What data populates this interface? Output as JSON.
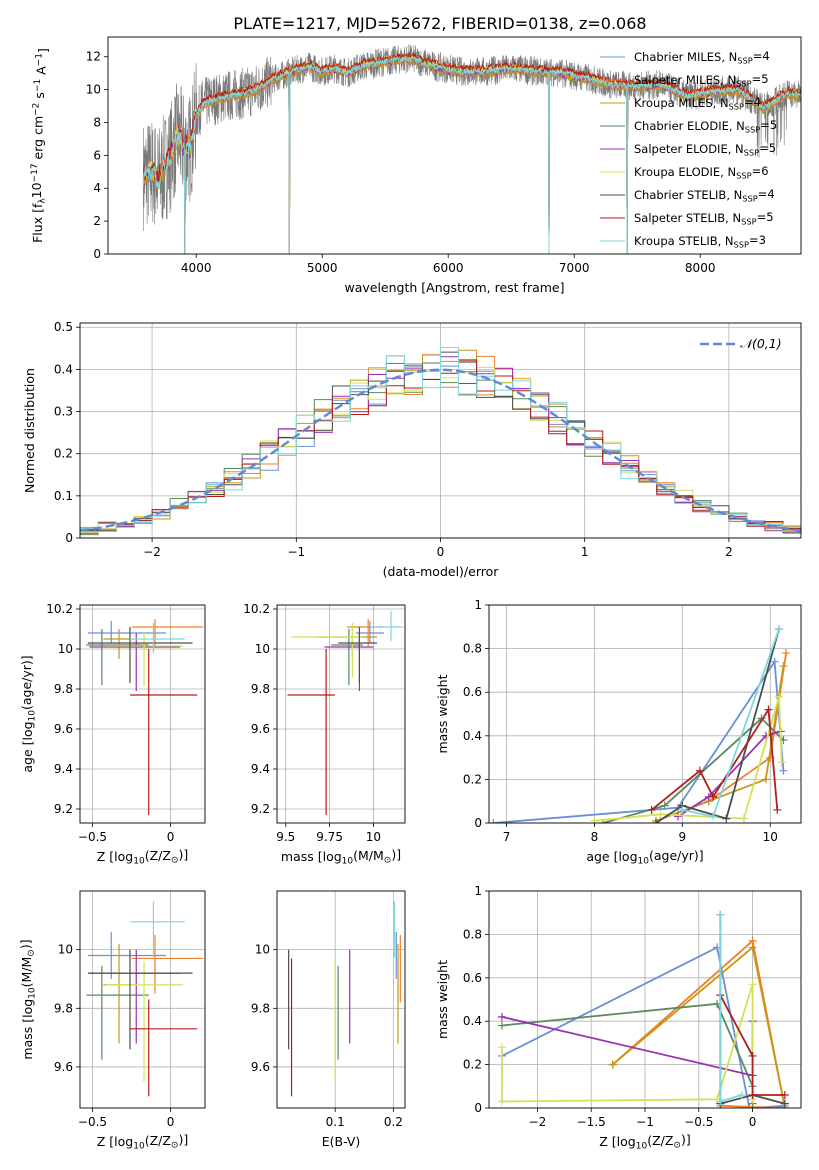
{
  "title": "PLATE=1217, MJD=52672, FIBERID=0138, z=0.068",
  "colors": [
    "#6b8fd6",
    "#f07f2c",
    "#c8971a",
    "#5a8a5e",
    "#9b30b5",
    "#d4e05a",
    "#4d4d4d",
    "#b01e1e",
    "#7fd7db"
  ],
  "series_names": [
    "Chabrier MILES, N<sub>SSP</sub>=4",
    "Salpeter MILES, N<sub>SSP</sub>=5",
    "Kroupa MILES, N<sub>SSP</sub>=4",
    "Chabrier ELODIE, N<sub>SSP</sub>=5",
    "Salpeter ELODIE, N<sub>SSP</sub>=5",
    "Kroupa ELODIE, N<sub>SSP</sub>=6",
    "Chabrier STELIB, N<sub>SSP</sub>=4",
    "Salpeter STELIB, N<sub>SSP</sub>=5",
    "Kroupa STELIB, N<sub>SSP</sub>=3"
  ],
  "chart_data": [
    {
      "id": "spectrum",
      "type": "line",
      "xlabel": "wavelength [Angstrom, rest frame]",
      "ylabel": "Flux [f<sub>λ</sub>10<sup>−17</sup> erg cm<sup>−2</sup> s<sup>−1</sup> A<sup>−1</sup>]",
      "xlim": [
        3300,
        8800
      ],
      "ylim": [
        0,
        13.2
      ],
      "xticks": [
        4000,
        5000,
        6000,
        7000,
        8000
      ],
      "yticks": [
        0,
        2,
        4,
        6,
        8,
        10,
        12
      ],
      "continuum": [
        [
          3580,
          4.8
        ],
        [
          3650,
          5.0
        ],
        [
          3700,
          4.5
        ],
        [
          3800,
          6.0
        ],
        [
          3850,
          7.2
        ],
        [
          3900,
          6.6
        ],
        [
          3950,
          6.4
        ],
        [
          4000,
          8.4
        ],
        [
          4050,
          9.1
        ],
        [
          4100,
          9.3
        ],
        [
          4200,
          9.5
        ],
        [
          4300,
          9.7
        ],
        [
          4400,
          9.8
        ],
        [
          4500,
          10.1
        ],
        [
          4600,
          10.6
        ],
        [
          4700,
          10.9
        ],
        [
          4800,
          11.2
        ],
        [
          4900,
          11.4
        ],
        [
          5000,
          11.1
        ],
        [
          5100,
          11.3
        ],
        [
          5200,
          11.0
        ],
        [
          5300,
          11.4
        ],
        [
          5500,
          11.7
        ],
        [
          5700,
          11.9
        ],
        [
          5900,
          11.4
        ],
        [
          6100,
          11.1
        ],
        [
          6300,
          11.1
        ],
        [
          6500,
          11.3
        ],
        [
          6700,
          11.1
        ],
        [
          6900,
          11.0
        ],
        [
          7100,
          10.7
        ],
        [
          7300,
          10.3
        ],
        [
          7500,
          10.2
        ],
        [
          7700,
          10.3
        ],
        [
          7900,
          9.6
        ],
        [
          8100,
          9.9
        ],
        [
          8300,
          10.0
        ],
        [
          8500,
          8.9
        ],
        [
          8600,
          9.3
        ],
        [
          8700,
          9.8
        ],
        [
          8800,
          9.6
        ]
      ],
      "spikes": [
        [
          3910,
          -8
        ],
        [
          4740,
          -11
        ],
        [
          6800,
          -11
        ],
        [
          7420,
          -12
        ]
      ]
    },
    {
      "id": "residuals",
      "type": "step-histogram",
      "xlabel": "(data-model)/error",
      "ylabel": "Normed distribution",
      "xlim": [
        -2.5,
        2.5
      ],
      "ylim": [
        0,
        0.51
      ],
      "xticks": [
        -2,
        -1,
        0,
        1,
        2
      ],
      "yticks": [
        0,
        0.1,
        0.2,
        0.3,
        0.4,
        0.5
      ],
      "bin_width": 0.125,
      "reference": {
        "label": "𝒩(0,1)",
        "mean": 0,
        "sigma": 1
      }
    },
    {
      "id": "age_vs_Z",
      "type": "errorbar",
      "xlabel": "Z [log<sub>10</sub>(Z/Z<sub>⊙</sub>)]",
      "ylabel": "age  [log<sub>10</sub>(age/yr)]",
      "xlim": [
        -0.58,
        0.22
      ],
      "ylim": [
        9.13,
        10.22
      ],
      "xticks": [
        -0.5,
        0.0
      ],
      "yticks": [
        9.2,
        9.4,
        9.6,
        9.8,
        10.0,
        10.2
      ],
      "points": [
        {
          "x": -0.38,
          "y": 10.08,
          "xerr": [
            0.15,
            0.35
          ],
          "yerr": [
            0.05,
            0.06
          ]
        },
        {
          "x": -0.1,
          "y": 10.11,
          "xerr": [
            0.15,
            0.31
          ],
          "yerr": [
            0.1,
            0.04
          ]
        },
        {
          "x": -0.33,
          "y": 10.05,
          "xerr": [
            0.1,
            0.1
          ],
          "yerr": [
            0.1,
            0.05
          ]
        },
        {
          "x": -0.44,
          "y": 10.02,
          "xerr": [
            0.1,
            0.3
          ],
          "yerr": [
            0.2,
            0.08
          ]
        },
        {
          "x": -0.22,
          "y": 10.01,
          "xerr": [
            0.3,
            0.28
          ],
          "yerr": [
            0.22,
            0.07
          ]
        },
        {
          "x": -0.17,
          "y": 10.015,
          "xerr": [
            0.25,
            0.25
          ],
          "yerr": [
            0.2,
            0.07
          ]
        },
        {
          "x": -0.26,
          "y": 10.03,
          "xerr": [
            0.27,
            0.4
          ],
          "yerr": [
            0.2,
            0.08
          ]
        },
        {
          "x": -0.14,
          "y": 9.77,
          "xerr": [
            0.12,
            0.31
          ],
          "yerr": [
            0.6,
            0.23
          ]
        },
        {
          "x": -0.11,
          "y": 10.05,
          "xerr": [
            0.15,
            0.2
          ],
          "yerr": [
            0.07,
            0.08
          ]
        }
      ]
    },
    {
      "id": "age_vs_mass",
      "type": "errorbar",
      "xlabel": "mass [log<sub>10</sub>(M/M<sub>⊙</sub>)]",
      "ylabel": "",
      "xlim": [
        9.45,
        10.18
      ],
      "ylim": [
        9.13,
        10.22
      ],
      "xticks": [
        9.5,
        9.75,
        10.0
      ],
      "yticks": [
        9.2,
        9.4,
        9.6,
        9.8,
        10.0,
        10.2
      ],
      "points": [
        {
          "x": 9.98,
          "y": 10.08,
          "xerr": [
            0.08,
            0.08
          ],
          "yerr": [
            0.05,
            0.06
          ]
        },
        {
          "x": 9.97,
          "y": 10.11,
          "xerr": [
            0.12,
            0.08
          ],
          "yerr": [
            0.1,
            0.04
          ]
        },
        {
          "x": 9.88,
          "y": 10.06,
          "xerr": [
            0.2,
            0.14
          ],
          "yerr": [
            0.1,
            0.05
          ]
        },
        {
          "x": 9.86,
          "y": 10.02,
          "xerr": [
            0.1,
            0.08
          ],
          "yerr": [
            0.2,
            0.08
          ]
        },
        {
          "x": 9.92,
          "y": 10.01,
          "xerr": [
            0.2,
            0.08
          ],
          "yerr": [
            0.22,
            0.07
          ]
        },
        {
          "x": 9.88,
          "y": 10.06,
          "xerr": [
            0.35,
            0.06
          ],
          "yerr": [
            0.2,
            0.07
          ]
        },
        {
          "x": 9.92,
          "y": 10.03,
          "xerr": [
            0.12,
            0.1
          ],
          "yerr": [
            0.2,
            0.08
          ]
        },
        {
          "x": 9.73,
          "y": 9.77,
          "xerr": [
            0.22,
            0.05
          ],
          "yerr": [
            0.6,
            0.23
          ]
        },
        {
          "x": 10.1,
          "y": 10.11,
          "xerr": [
            0.12,
            0.07
          ],
          "yerr": [
            0.07,
            0.08
          ]
        }
      ]
    },
    {
      "id": "weight_vs_age",
      "type": "line",
      "xlabel": "age  [log<sub>10</sub>(age/yr)]",
      "ylabel": "mass weight",
      "xlim": [
        6.8,
        10.35
      ],
      "ylim": [
        0,
        1
      ],
      "xticks": [
        7,
        8,
        9,
        10
      ],
      "yticks": [
        0.0,
        0.2,
        0.4,
        0.6,
        0.8,
        1.0
      ],
      "series": [
        [
          [
            6.85,
            0.0
          ],
          [
            8.95,
            0.07
          ],
          [
            10.05,
            0.74
          ],
          [
            10.15,
            0.24
          ]
        ],
        [
          [
            8.7,
            0.01
          ],
          [
            9.3,
            0.1
          ],
          [
            10.0,
            0.3
          ],
          [
            10.18,
            0.78
          ]
        ],
        [
          [
            8.7,
            0.01
          ],
          [
            9.3,
            0.1
          ],
          [
            9.95,
            0.2
          ],
          [
            10.15,
            0.72
          ]
        ],
        [
          [
            8.1,
            0.0
          ],
          [
            8.8,
            0.08
          ],
          [
            9.9,
            0.48
          ],
          [
            10.15,
            0.38
          ]
        ],
        [
          [
            8.95,
            0.03
          ],
          [
            9.3,
            0.12
          ],
          [
            9.95,
            0.4
          ],
          [
            10.12,
            0.42
          ]
        ],
        [
          [
            8.0,
            0.01
          ],
          [
            8.75,
            0.04
          ],
          [
            9.7,
            0.02
          ],
          [
            10.1,
            0.58
          ],
          [
            10.13,
            0.28
          ]
        ],
        [
          [
            8.7,
            0.0
          ],
          [
            9.0,
            0.08
          ],
          [
            9.5,
            0.02
          ],
          [
            10.1,
            0.89
          ]
        ],
        [
          [
            8.65,
            0.06
          ],
          [
            9.2,
            0.24
          ],
          [
            9.35,
            0.12
          ],
          [
            9.98,
            0.52
          ],
          [
            10.08,
            0.06
          ]
        ],
        [
          [
            9.0,
            0.06
          ],
          [
            9.35,
            0.03
          ],
          [
            10.1,
            0.89
          ]
        ]
      ]
    },
    {
      "id": "mass_vs_Z",
      "type": "errorbar",
      "xlabel": "Z [log<sub>10</sub>(Z/Z<sub>⊙</sub>)]",
      "ylabel": "mass [log<sub>10</sub>(M/M<sub>⊙</sub>)]",
      "xlim": [
        -0.58,
        0.22
      ],
      "ylim": [
        9.46,
        10.2
      ],
      "xticks": [
        -0.5,
        0.0
      ],
      "yticks": [
        9.6,
        9.8,
        10.0
      ],
      "points": [
        {
          "x": -0.38,
          "y": 9.98,
          "xerr": [
            0.15,
            0.35
          ],
          "yerr": [
            0.08,
            0.08
          ]
        },
        {
          "x": -0.1,
          "y": 9.97,
          "xerr": [
            0.15,
            0.31
          ],
          "yerr": [
            0.12,
            0.08
          ]
        },
        {
          "x": -0.33,
          "y": 9.88,
          "xerr": [
            0.1,
            0.1
          ],
          "yerr": [
            0.2,
            0.14
          ]
        },
        {
          "x": -0.44,
          "y": 9.845,
          "xerr": [
            0.1,
            0.3
          ],
          "yerr": [
            0.22,
            0.1
          ]
        },
        {
          "x": -0.22,
          "y": 9.92,
          "xerr": [
            0.3,
            0.28
          ],
          "yerr": [
            0.24,
            0.08
          ]
        },
        {
          "x": -0.17,
          "y": 9.88,
          "xerr": [
            0.25,
            0.25
          ],
          "yerr": [
            0.33,
            0.08
          ]
        },
        {
          "x": -0.26,
          "y": 9.92,
          "xerr": [
            0.27,
            0.4
          ],
          "yerr": [
            0.26,
            0.08
          ]
        },
        {
          "x": -0.14,
          "y": 9.73,
          "xerr": [
            0.12,
            0.31
          ],
          "yerr": [
            0.23,
            0.1
          ]
        },
        {
          "x": -0.11,
          "y": 10.095,
          "xerr": [
            0.15,
            0.2
          ],
          "yerr": [
            0.12,
            0.07
          ]
        }
      ]
    },
    {
      "id": "mass_vs_EBV",
      "type": "errorbar",
      "xlabel": "E(B-V)",
      "ylabel": "",
      "xlim": [
        0.0,
        0.22
      ],
      "ylim": [
        9.46,
        10.2
      ],
      "xticks": [
        0.1,
        0.2
      ],
      "yticks": [
        9.6,
        9.8,
        10.0
      ],
      "points": [
        {
          "x": 0.205,
          "y": 9.98,
          "xerr": [
            0,
            0
          ],
          "yerr": [
            0.08,
            0.08
          ]
        },
        {
          "x": 0.212,
          "y": 9.97,
          "xerr": [
            0,
            0
          ],
          "yerr": [
            0.15,
            0.08
          ]
        },
        {
          "x": 0.208,
          "y": 9.88,
          "xerr": [
            0,
            0
          ],
          "yerr": [
            0.2,
            0.14
          ]
        },
        {
          "x": 0.105,
          "y": 9.845,
          "xerr": [
            0,
            0
          ],
          "yerr": [
            0.22,
            0.1
          ]
        },
        {
          "x": 0.125,
          "y": 9.92,
          "xerr": [
            0,
            0
          ],
          "yerr": [
            0.24,
            0.08
          ]
        },
        {
          "x": 0.1,
          "y": 9.88,
          "xerr": [
            0,
            0
          ],
          "yerr": [
            0.33,
            0.08
          ]
        },
        {
          "x": 0.02,
          "y": 9.92,
          "xerr": [
            0,
            0
          ],
          "yerr": [
            0.26,
            0.08
          ]
        },
        {
          "x": 0.025,
          "y": 9.73,
          "xerr": [
            0,
            0
          ],
          "yerr": [
            0.23,
            0.24
          ]
        },
        {
          "x": 0.202,
          "y": 10.095,
          "xerr": [
            0,
            0
          ],
          "yerr": [
            0.12,
            0.07
          ]
        }
      ]
    },
    {
      "id": "weight_vs_Z",
      "type": "line",
      "xlabel": "Z [log<sub>10</sub>(Z/Z<sub>⊙</sub>)]",
      "ylabel": "mass weight",
      "xlim": [
        -2.45,
        0.45
      ],
      "ylim": [
        0,
        1
      ],
      "xticks": [
        -2.0,
        -1.5,
        -1.0,
        -0.5,
        0.0
      ],
      "yticks": [
        0.0,
        0.2,
        0.4,
        0.6,
        0.8,
        1.0
      ],
      "series": [
        [
          [
            -2.33,
            0.24
          ],
          [
            -0.33,
            0.74
          ],
          [
            -0.03,
            0.0
          ],
          [
            0.3,
            0.01
          ]
        ],
        [
          [
            -1.3,
            0.2
          ],
          [
            0.0,
            0.77
          ],
          [
            0.3,
            0.0
          ],
          [
            -0.3,
            0.01
          ]
        ],
        [
          [
            -1.3,
            0.2
          ],
          [
            0.0,
            0.74
          ],
          [
            0.3,
            0.0
          ]
        ],
        [
          [
            -2.33,
            0.38
          ],
          [
            -0.33,
            0.48
          ],
          [
            0.0,
            0.1
          ],
          [
            0.0,
            0.02
          ]
        ],
        [
          [
            -2.33,
            0.42
          ],
          [
            0.0,
            0.15
          ],
          [
            0.0,
            0.4
          ]
        ],
        [
          [
            -2.33,
            0.28
          ],
          [
            -2.33,
            0.03
          ],
          [
            -0.33,
            0.04
          ],
          [
            0.0,
            0.57
          ],
          [
            0.0,
            0.04
          ]
        ],
        [
          [
            -0.3,
            0.89
          ],
          [
            -0.3,
            0.02
          ],
          [
            0.0,
            0.06
          ],
          [
            0.3,
            0.02
          ]
        ],
        [
          [
            -0.3,
            0.52
          ],
          [
            0.0,
            0.24
          ],
          [
            0.0,
            0.06
          ],
          [
            0.3,
            0.06
          ]
        ],
        [
          [
            -0.3,
            0.89
          ],
          [
            -0.3,
            0.03
          ],
          [
            -0.1,
            0.06
          ]
        ]
      ]
    }
  ]
}
